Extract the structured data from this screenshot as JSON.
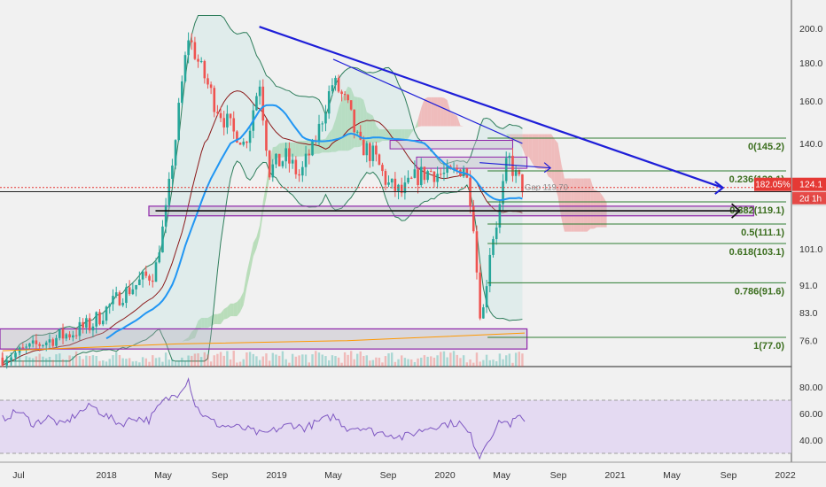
{
  "chart_data": {
    "type": "candlestick",
    "price_axis": {
      "scale": "log",
      "ticks": [
        200.0,
        180.0,
        160.0,
        140.0,
        119.7,
        101.0,
        91.0,
        83.0,
        76.0
      ],
      "tick_labels": [
        "200.0",
        "180.0",
        "160.0",
        "140.0",
        "119.7",
        "101.0",
        "91.0",
        "83.0",
        "76.0"
      ],
      "range": [
        69,
        210
      ]
    },
    "time_axis": {
      "tick_labels": [
        "Jul",
        "2018",
        "May",
        "Sep",
        "2019",
        "May",
        "Sep",
        "2020",
        "May",
        "Sep",
        "2021",
        "May",
        "Sep",
        "2022"
      ],
      "tick_dates": [
        "2017-07",
        "2018-01",
        "2018-05",
        "2018-09",
        "2019-01",
        "2019-05",
        "2019-09",
        "2020-01",
        "2020-05",
        "2020-09",
        "2021-01",
        "2021-05",
        "2021-09",
        "2022-01"
      ],
      "range": [
        "2017-06",
        "2022-01"
      ]
    },
    "badges": {
      "last_price": "124.1",
      "secondary_value": "182.05%",
      "countdown": "2d 1h",
      "level_price": "119.7"
    },
    "fibonacci": [
      {
        "ratio": "0",
        "price": 145.2,
        "label": "0(145.2)"
      },
      {
        "ratio": "0.236",
        "price": 130.1,
        "label": "0.236(130.1)"
      },
      {
        "ratio": "0.382",
        "price": 119.1,
        "label": "0.382(119.1)"
      },
      {
        "ratio": "0.5",
        "price": 111.1,
        "label": "0.5(111.1)"
      },
      {
        "ratio": "0.618",
        "price": 103.1,
        "label": "0.618(103.1)"
      },
      {
        "ratio": "0.786",
        "price": 91.6,
        "label": "0.786(91.6)"
      },
      {
        "ratio": "1",
        "price": 77.0,
        "label": "1(77.0)"
      }
    ],
    "annotations": {
      "gap_label": "Gap 119.70"
    },
    "trendlines": [
      {
        "name": "major-downtrend",
        "from": {
          "date": "2018-11-25",
          "price": 201
        },
        "to": {
          "date": "2021-08-20",
          "price": 124
        }
      },
      {
        "name": "minor-downtrend",
        "from": {
          "date": "2019-05-01",
          "price": 182
        },
        "to": {
          "date": "2020-06-15",
          "price": 140
        }
      }
    ],
    "zones": [
      {
        "name": "support-zone-119",
        "from": "2018-04-01",
        "to": "2021-10-25",
        "low": 114,
        "high": 117.5
      },
      {
        "name": "base-zone-77",
        "from": "2017-06-01",
        "to": "2020-06-25",
        "low": 73.5,
        "high": 79
      }
    ],
    "rsi": {
      "ticks": [
        80.0,
        60.0,
        40.0
      ],
      "tick_labels": [
        "80.00",
        "60.00",
        "40.00"
      ],
      "upper_band": 70,
      "lower_band": 30,
      "values": [
        {
          "date": "2017-06-05",
          "value": 56
        },
        {
          "date": "2017-07-01",
          "value": 62
        },
        {
          "date": "2017-08-01",
          "value": 52
        },
        {
          "date": "2017-09-01",
          "value": 57
        },
        {
          "date": "2017-10-01",
          "value": 51
        },
        {
          "date": "2017-11-01",
          "value": 60
        },
        {
          "date": "2017-12-01",
          "value": 66
        },
        {
          "date": "2018-01-01",
          "value": 58
        },
        {
          "date": "2018-02-01",
          "value": 52
        },
        {
          "date": "2018-03-01",
          "value": 57
        },
        {
          "date": "2018-04-01",
          "value": 55
        },
        {
          "date": "2018-05-01",
          "value": 69
        },
        {
          "date": "2018-06-01",
          "value": 75
        },
        {
          "date": "2018-06-25",
          "value": 86
        },
        {
          "date": "2018-07-10",
          "value": 66
        },
        {
          "date": "2018-08-01",
          "value": 57
        },
        {
          "date": "2018-09-01",
          "value": 51
        },
        {
          "date": "2018-10-01",
          "value": 50
        },
        {
          "date": "2018-11-01",
          "value": 48
        },
        {
          "date": "2018-12-01",
          "value": 44
        },
        {
          "date": "2019-01-01",
          "value": 48
        },
        {
          "date": "2019-02-01",
          "value": 52
        },
        {
          "date": "2019-03-01",
          "value": 49
        },
        {
          "date": "2019-04-01",
          "value": 54
        },
        {
          "date": "2019-05-01",
          "value": 58
        },
        {
          "date": "2019-06-01",
          "value": 49
        },
        {
          "date": "2019-07-01",
          "value": 50
        },
        {
          "date": "2019-08-01",
          "value": 46
        },
        {
          "date": "2019-09-01",
          "value": 45
        },
        {
          "date": "2019-10-01",
          "value": 42
        },
        {
          "date": "2019-11-01",
          "value": 46
        },
        {
          "date": "2019-12-01",
          "value": 50
        },
        {
          "date": "2020-01-01",
          "value": 52
        },
        {
          "date": "2020-02-01",
          "value": 53
        },
        {
          "date": "2020-02-25",
          "value": 43
        },
        {
          "date": "2020-03-15",
          "value": 28
        },
        {
          "date": "2020-04-01",
          "value": 40
        },
        {
          "date": "2020-05-01",
          "value": 55
        },
        {
          "date": "2020-05-20",
          "value": 52
        },
        {
          "date": "2020-06-05",
          "value": 57
        },
        {
          "date": "2020-06-20",
          "value": 54
        }
      ]
    },
    "title": "",
    "xlabel": "",
    "ylabel": ""
  },
  "colors": {
    "background": "#f1f1f1",
    "bull": "#26a69a",
    "bear": "#ef5350",
    "trendline": "#1e1ed8",
    "fib_line": "#2e7d32",
    "fib_text": "#3b6e1e",
    "zone_stroke": "#8e24aa",
    "cloud_bull": "#a5d6a7",
    "cloud_bear": "#ef9a9a",
    "ma_blue": "#2196f3",
    "bollinger": "#2e7d5b",
    "rsi_line": "#7e57c2",
    "rsi_band": "#e1d5f3",
    "badge_red": "#e53935",
    "badge_dark": "#333333"
  }
}
